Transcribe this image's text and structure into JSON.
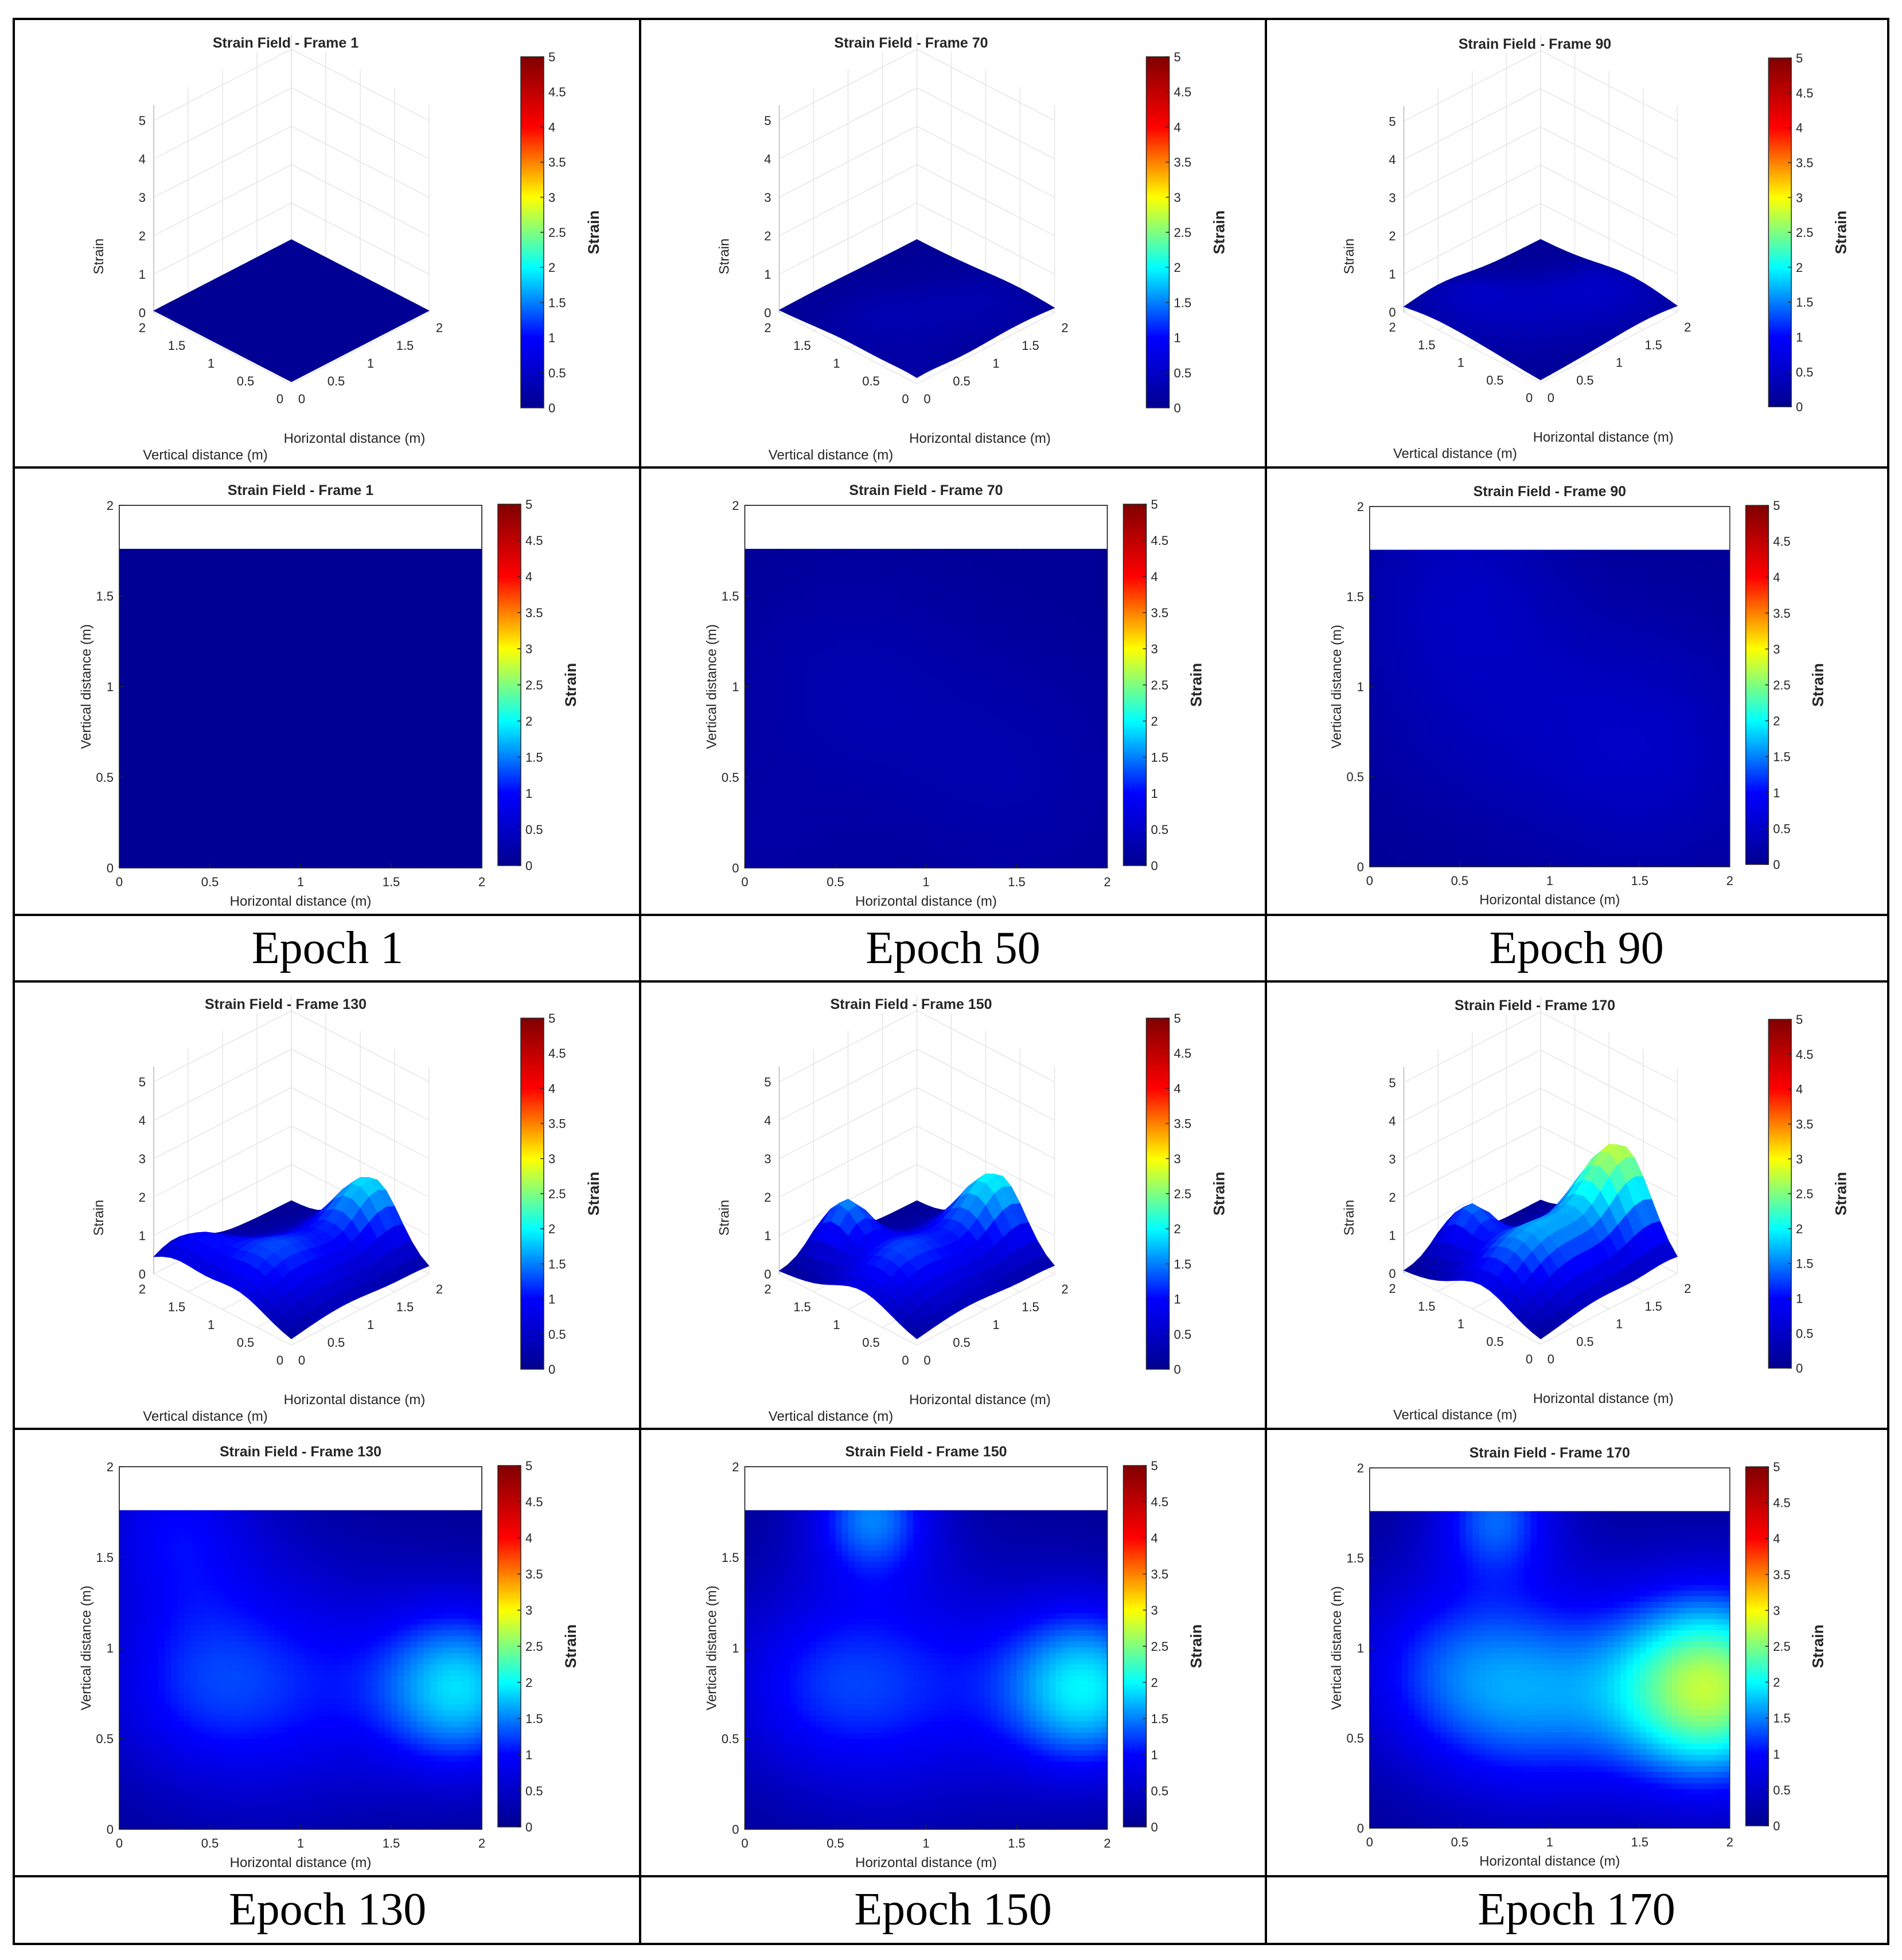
{
  "colormap": [
    "#00008f",
    "#0000ff",
    "#00ffff",
    "#ffff00",
    "#ff0000",
    "#800000"
  ],
  "colorbar": {
    "label": "Strain",
    "ticks": [
      "0",
      "0.5",
      "1",
      "1.5",
      "2",
      "2.5",
      "3",
      "3.5",
      "4",
      "4.5",
      "5"
    ]
  },
  "axes3d": {
    "zlabel": "Strain",
    "xlabel": "Horizontal distance (m)",
    "ylabel": "Vertical distance (m)",
    "zticks": [
      "0",
      "1",
      "2",
      "3",
      "4",
      "5"
    ],
    "xticks": [
      "0",
      "0.5",
      "1",
      "1.5",
      "2"
    ],
    "yticks": [
      "0",
      "0.5",
      "1",
      "1.5",
      "2"
    ]
  },
  "axes2d": {
    "xlabel": "Horizontal distance (m)",
    "ylabel": "Vertical distance (m)",
    "xticks": [
      "0",
      "0.5",
      "1",
      "1.5",
      "2"
    ],
    "yticks": [
      "0",
      "0.5",
      "1",
      "1.5",
      "2"
    ]
  },
  "chart_data": [
    {
      "type": "heatmap",
      "title": "Strain Field - Frame 1",
      "epoch": "Epoch 1",
      "xlim": [
        0,
        2
      ],
      "ylim": [
        0,
        2
      ],
      "clim": [
        0,
        5
      ],
      "data_extent_y": 1.76,
      "peaks": []
    },
    {
      "type": "heatmap",
      "title": "Strain Field - Frame 70",
      "epoch": "Epoch 50",
      "xlim": [
        0,
        2
      ],
      "ylim": [
        0,
        2
      ],
      "clim": [
        0,
        5
      ],
      "data_extent_y": 1.76,
      "peaks": [
        {
          "x": 0.55,
          "y": 1.0,
          "a": 0.22,
          "s": 0.5
        },
        {
          "x": 1.5,
          "y": 0.5,
          "a": 0.2,
          "s": 0.5
        },
        {
          "x": 0.1,
          "y": 0.1,
          "a": 0.1,
          "s": 0.3
        }
      ]
    },
    {
      "type": "heatmap",
      "title": "Strain Field - Frame 90",
      "epoch": "Epoch 90",
      "xlim": [
        0,
        2
      ],
      "ylim": [
        0,
        2
      ],
      "clim": [
        0,
        5
      ],
      "data_extent_y": 1.76,
      "peaks": [
        {
          "x": 0.5,
          "y": 1.6,
          "a": 0.3,
          "s": 0.4
        },
        {
          "x": 1.55,
          "y": 0.65,
          "a": 0.4,
          "s": 0.5
        },
        {
          "x": 0.6,
          "y": 0.9,
          "a": 0.25,
          "s": 0.5
        }
      ]
    },
    {
      "type": "heatmap",
      "title": "Strain Field - Frame 130",
      "epoch": "Epoch 130",
      "xlim": [
        0,
        2
      ],
      "ylim": [
        0,
        2
      ],
      "clim": [
        0,
        5
      ],
      "data_extent_y": 1.76,
      "peaks": [
        {
          "x": 1.9,
          "y": 0.78,
          "a": 1.7,
          "s": 0.35
        },
        {
          "x": 0.9,
          "y": 0.8,
          "a": 0.9,
          "s": 0.5
        },
        {
          "x": 0.3,
          "y": 1.7,
          "a": 0.8,
          "s": 0.35
        },
        {
          "x": 0.3,
          "y": 0.8,
          "a": 0.6,
          "s": 0.4
        }
      ]
    },
    {
      "type": "heatmap",
      "title": "Strain Field - Frame 150",
      "epoch": "Epoch 150",
      "xlim": [
        0,
        2
      ],
      "ylim": [
        0,
        2
      ],
      "clim": [
        0,
        5
      ],
      "data_extent_y": 1.76,
      "peaks": [
        {
          "x": 1.9,
          "y": 0.78,
          "a": 1.8,
          "s": 0.35
        },
        {
          "x": 0.7,
          "y": 1.75,
          "a": 1.3,
          "s": 0.25
        },
        {
          "x": 0.9,
          "y": 0.8,
          "a": 0.9,
          "s": 0.5
        },
        {
          "x": 0.3,
          "y": 0.8,
          "a": 0.6,
          "s": 0.4
        }
      ]
    },
    {
      "type": "heatmap",
      "title": "Strain Field - Frame 170",
      "epoch": "Epoch 170",
      "xlim": [
        0,
        2
      ],
      "ylim": [
        0,
        2
      ],
      "clim": [
        0,
        5
      ],
      "data_extent_y": 1.76,
      "peaks": [
        {
          "x": 1.9,
          "y": 0.78,
          "a": 2.6,
          "s": 0.4
        },
        {
          "x": 0.9,
          "y": 0.75,
          "a": 1.3,
          "s": 0.45
        },
        {
          "x": 0.7,
          "y": 1.75,
          "a": 1.2,
          "s": 0.25
        },
        {
          "x": 0.3,
          "y": 0.9,
          "a": 0.7,
          "s": 0.4
        }
      ]
    }
  ]
}
